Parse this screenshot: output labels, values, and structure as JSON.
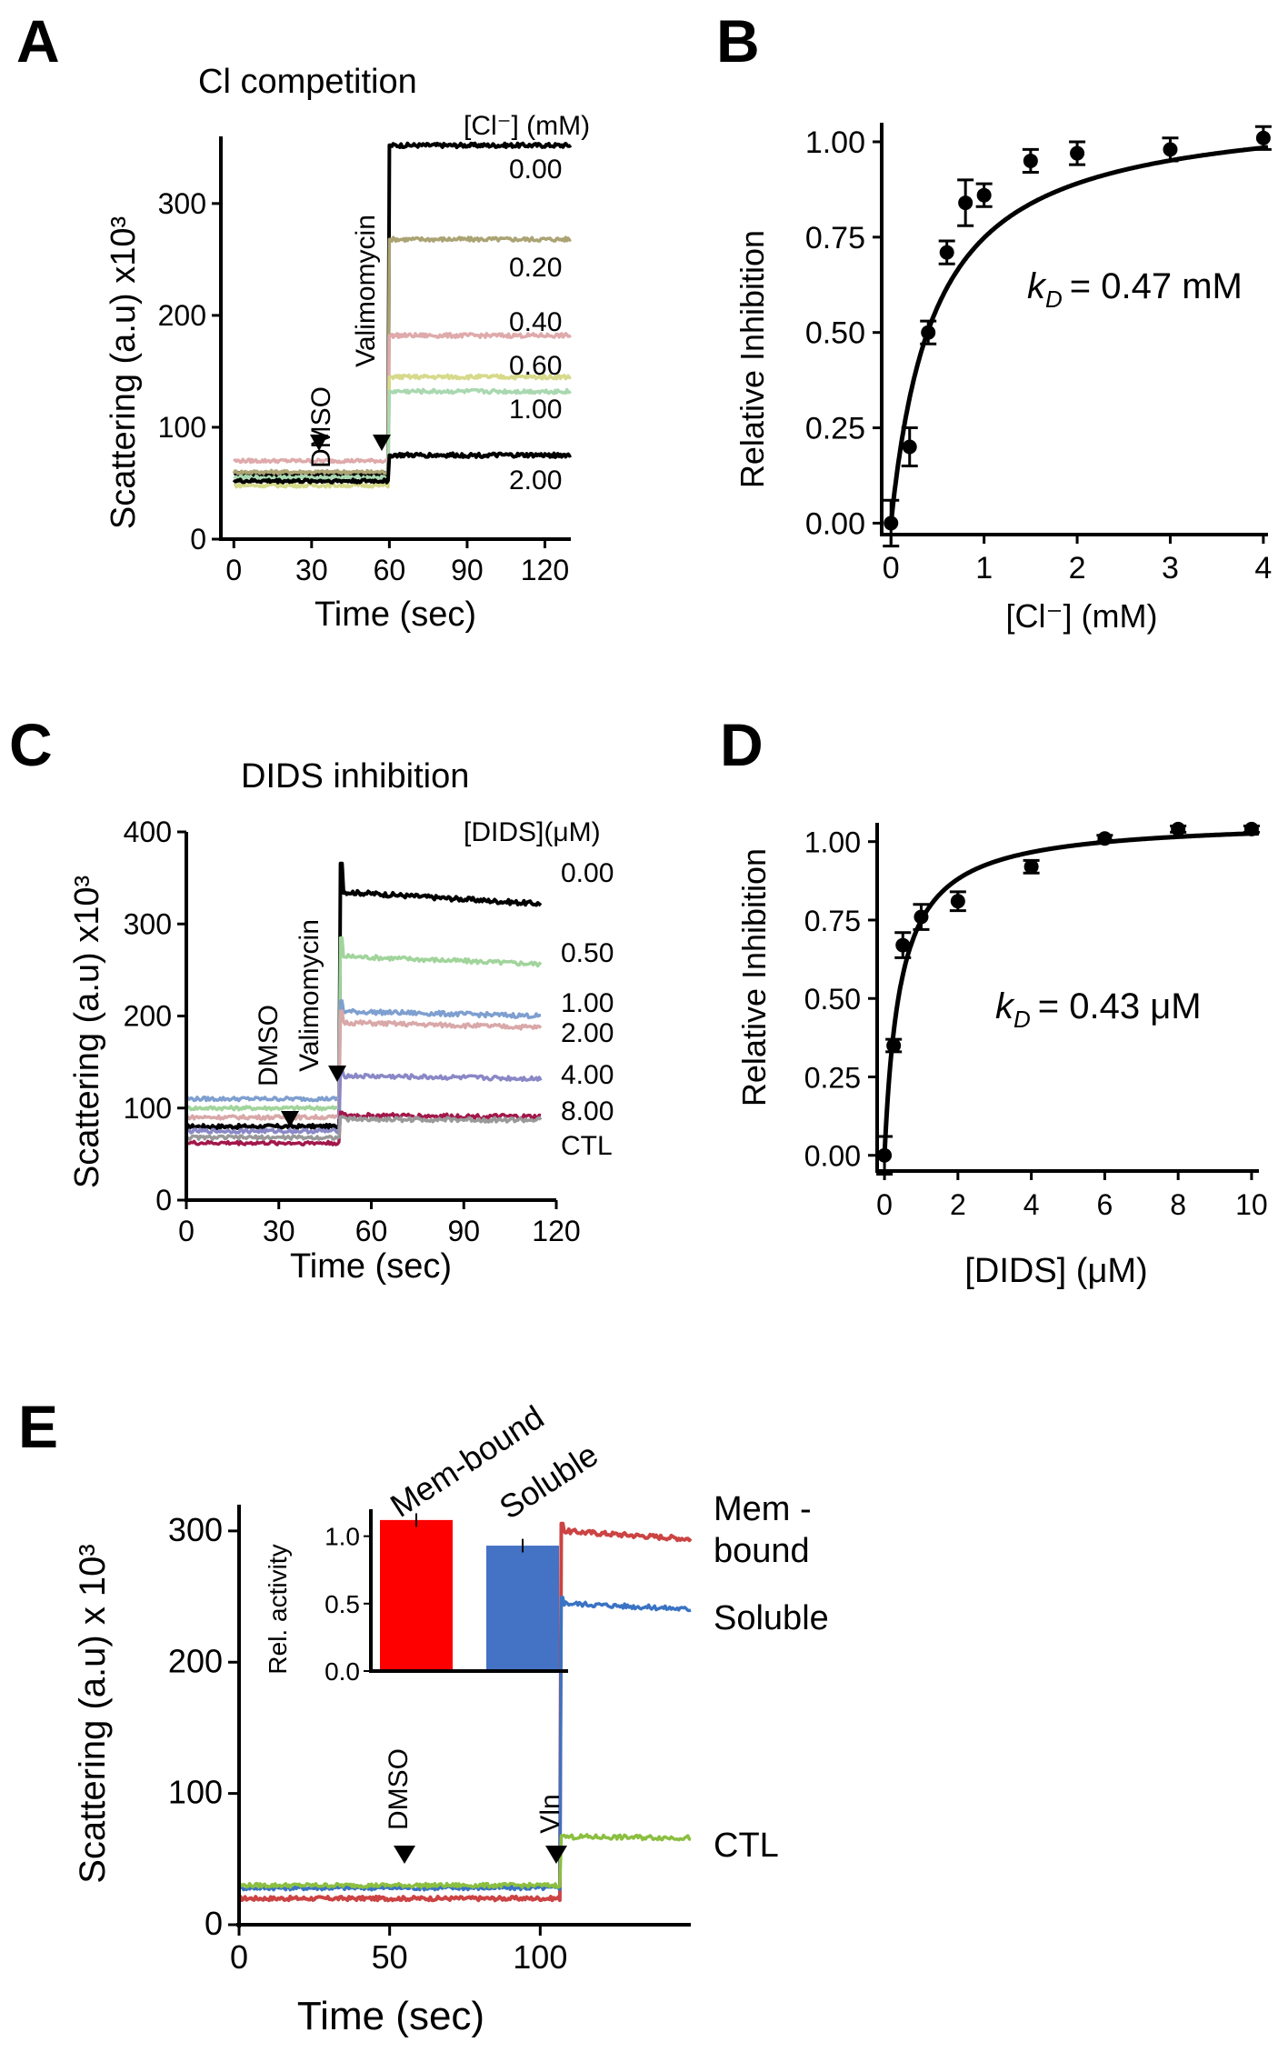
{
  "chart_data": [
    {
      "panel": "A",
      "type": "line",
      "title": "Cl competition",
      "xlabel": "Time (sec)",
      "ylabel": "Scattering (a.u) x10³",
      "xlim": [
        -5,
        130
      ],
      "ylim": [
        0,
        360
      ],
      "xticks": [
        "0",
        "30",
        "60",
        "90",
        "120"
      ],
      "yticks": [
        "0",
        "100",
        "200",
        "300"
      ],
      "legend_title": "[Cl⁻] (mM)",
      "annotations": [
        "DMSO",
        "Valimomycin"
      ],
      "series": [
        {
          "name": "0.00",
          "color": "#000000",
          "baseline": 58,
          "plateau": 352
        },
        {
          "name": "0.20",
          "color": "#aba373",
          "baseline": 60,
          "plateau": 268
        },
        {
          "name": "0.40",
          "color": "#dfaaab",
          "baseline": 70,
          "plateau": 182
        },
        {
          "name": "0.60",
          "color": "#d6da8a",
          "baseline": 48,
          "plateau": 145
        },
        {
          "name": "1.00",
          "color": "#a9d8b0",
          "baseline": 55,
          "plateau": 132
        },
        {
          "name": "2.00",
          "color": "#000000",
          "baseline": 52,
          "plateau": 75
        }
      ]
    },
    {
      "panel": "B",
      "type": "scatter",
      "xlabel": "[Cl⁻] (mM)",
      "ylabel": "Relative Inhibition",
      "xlim": [
        -0.1,
        4.05
      ],
      "ylim": [
        -0.03,
        1.05
      ],
      "xticks": [
        "0",
        "1",
        "2",
        "3",
        "4"
      ],
      "yticks": [
        "0.00",
        "0.25",
        "0.50",
        "0.75",
        "1.00"
      ],
      "annotation": "k_D = 0.47 mM",
      "kd_symbol": "k",
      "kd_sub": "D",
      "kd_value": "= 0.47 mM",
      "kd": 0.47,
      "fit_max": 1.1,
      "points": [
        {
          "x": 0.0,
          "y": 0.0,
          "err": 0.06
        },
        {
          "x": 0.2,
          "y": 0.2,
          "err": 0.05
        },
        {
          "x": 0.4,
          "y": 0.5,
          "err": 0.03
        },
        {
          "x": 0.6,
          "y": 0.71,
          "err": 0.03
        },
        {
          "x": 0.8,
          "y": 0.84,
          "err": 0.06
        },
        {
          "x": 1.0,
          "y": 0.86,
          "err": 0.03
        },
        {
          "x": 1.5,
          "y": 0.95,
          "err": 0.03
        },
        {
          "x": 2.0,
          "y": 0.97,
          "err": 0.03
        },
        {
          "x": 3.0,
          "y": 0.98,
          "err": 0.03
        },
        {
          "x": 4.0,
          "y": 1.01,
          "err": 0.03
        }
      ]
    },
    {
      "panel": "C",
      "type": "line",
      "title": "DIDS inhibition",
      "xlabel": "Time (sec)",
      "ylabel": "Scattering (a.u) x10³",
      "xlim": [
        0,
        120
      ],
      "ylim": [
        0,
        400
      ],
      "xticks": [
        "0",
        "30",
        "60",
        "90",
        "120"
      ],
      "yticks": [
        "0",
        "100",
        "200",
        "300",
        "400"
      ],
      "legend_title": "[DIDS](μM)",
      "annotations": [
        "DMSO",
        "Valimomycin"
      ],
      "series": [
        {
          "name": "0.00",
          "color": "#000000",
          "baseline": 80,
          "plateau": 335
        },
        {
          "name": "0.50",
          "color": "#a0d49b",
          "baseline": 100,
          "plateau": 265
        },
        {
          "name": "1.00",
          "color": "#7e9fd0",
          "baseline": 110,
          "plateau": 205
        },
        {
          "name": "2.00",
          "color": "#d9a8a8",
          "baseline": 90,
          "plateau": 193
        },
        {
          "name": "4.00",
          "color": "#8a88c6",
          "baseline": 75,
          "plateau": 135
        },
        {
          "name": "8.00",
          "color": "#a3174b",
          "baseline": 62,
          "plateau": 92
        },
        {
          "name": "CTL",
          "color": "#999999",
          "baseline": 68,
          "plateau": 88
        }
      ]
    },
    {
      "panel": "D",
      "type": "scatter",
      "xlabel": "[DIDS] (μM)",
      "ylabel": "Relative Inhibition",
      "xlim": [
        -0.2,
        10.2
      ],
      "ylim": [
        -0.05,
        1.06
      ],
      "xticks": [
        "0",
        "2",
        "4",
        "6",
        "8",
        "10"
      ],
      "yticks": [
        "0.00",
        "0.25",
        "0.50",
        "0.75",
        "1.00"
      ],
      "annotation": "k_D = 0.43 μM",
      "kd_symbol": "k",
      "kd_sub": "D",
      "kd_value": "= 0.43 μM",
      "kd": 0.43,
      "fit_max": 1.07,
      "points": [
        {
          "x": 0.0,
          "y": 0.0,
          "err": 0.06
        },
        {
          "x": 0.25,
          "y": 0.35,
          "err": 0.02
        },
        {
          "x": 0.5,
          "y": 0.67,
          "err": 0.04
        },
        {
          "x": 1.0,
          "y": 0.76,
          "err": 0.04
        },
        {
          "x": 2.0,
          "y": 0.81,
          "err": 0.03
        },
        {
          "x": 4.0,
          "y": 0.92,
          "err": 0.02
        },
        {
          "x": 6.0,
          "y": 1.01,
          "err": 0.01
        },
        {
          "x": 8.0,
          "y": 1.04,
          "err": 0.01
        },
        {
          "x": 10.0,
          "y": 1.04,
          "err": 0.01
        }
      ]
    },
    {
      "panel": "E",
      "type": "line",
      "xlabel": "Time (sec)",
      "ylabel": "Scattering (a.u) x 10³",
      "xlim": [
        0,
        150
      ],
      "ylim": [
        0,
        320
      ],
      "xticks": [
        "0",
        "50",
        "100"
      ],
      "yticks": [
        "0",
        "100",
        "200",
        "300"
      ],
      "annotations": [
        "DMSO",
        "Vln"
      ],
      "series": [
        {
          "name": "Mem - bound",
          "label_lines": [
            "Mem -",
            "bound"
          ],
          "color": "#cc4343",
          "baseline": 20,
          "plateau": 300
        },
        {
          "name": "Soluble",
          "color": "#3a73c4",
          "baseline": 28,
          "plateau": 245
        },
        {
          "name": "CTL",
          "color": "#8bbf40",
          "baseline": 30,
          "plateau": 67
        }
      ],
      "inset": {
        "type": "bar",
        "ylabel": "Rel. activity",
        "ylim": [
          0,
          1.2
        ],
        "yticks": [
          "0.0",
          "0.5",
          "1.0"
        ],
        "categories": [
          "Mem-bound",
          "Soluble"
        ],
        "values": [
          1.12,
          0.93
        ],
        "errors": [
          0.05,
          0.05
        ],
        "colors": [
          "#ff0000",
          "#4472c4"
        ]
      }
    }
  ]
}
